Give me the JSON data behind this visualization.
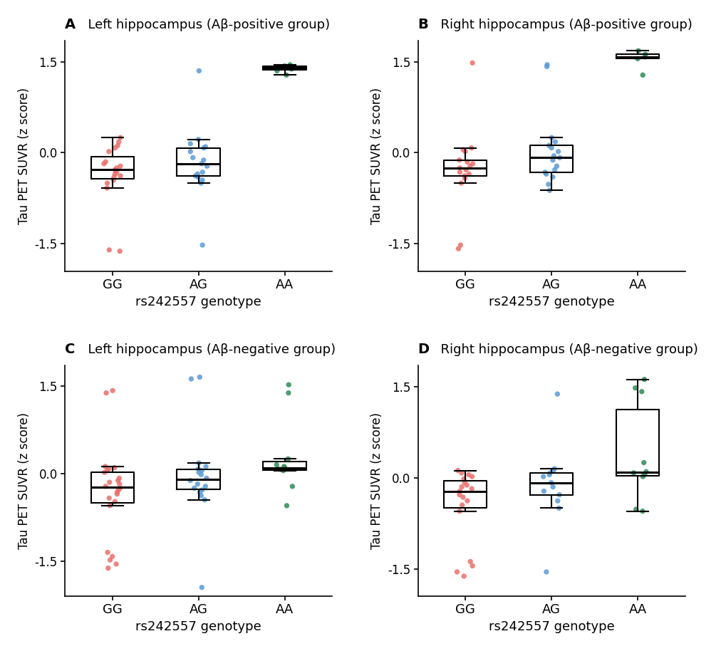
{
  "panels": [
    {
      "label": "A",
      "title": "Left hippocampus (Aβ-positive group)",
      "groups": {
        "GG": [
          -1.62,
          -1.6,
          -0.58,
          -0.5,
          -0.45,
          -0.4,
          -0.38,
          -0.35,
          -0.32,
          -0.28,
          -0.25,
          -0.22,
          -0.18,
          -0.15,
          0.02,
          0.08,
          0.12,
          0.18,
          0.25
        ],
        "AG": [
          -1.52,
          -0.5,
          -0.45,
          -0.4,
          -0.38,
          -0.35,
          -0.32,
          -0.22,
          -0.18,
          -0.12,
          -0.08,
          0.02,
          0.08,
          0.1,
          0.15,
          0.22,
          1.35
        ],
        "AA": [
          1.28,
          1.35,
          1.38,
          1.4,
          1.42,
          1.43,
          1.45
        ]
      },
      "ylim": [
        -1.95,
        1.85
      ],
      "yticks": [
        -1.5,
        0.0,
        1.5
      ]
    },
    {
      "label": "B",
      "title": "Right hippocampus (Aβ-positive group)",
      "groups": {
        "GG": [
          -1.58,
          -1.52,
          -0.5,
          -0.42,
          -0.38,
          -0.35,
          -0.32,
          -0.28,
          -0.25,
          -0.22,
          -0.18,
          -0.15,
          -0.12,
          0.02,
          0.05,
          0.08,
          1.48
        ],
        "AG": [
          -0.62,
          -0.52,
          -0.4,
          -0.35,
          -0.32,
          -0.28,
          -0.22,
          -0.12,
          -0.08,
          -0.05,
          0.02,
          0.08,
          0.12,
          0.18,
          0.25,
          1.42,
          1.45
        ],
        "AA": [
          1.28,
          1.55,
          1.58,
          1.62,
          1.68
        ]
      },
      "ylim": [
        -1.95,
        1.85
      ],
      "yticks": [
        -1.5,
        0.0,
        1.5
      ]
    },
    {
      "label": "C",
      "title": "Left hippocampus (Aβ-negative group)",
      "groups": {
        "GG": [
          -1.62,
          -1.55,
          -1.48,
          -1.42,
          -1.35,
          -0.55,
          -0.48,
          -0.42,
          -0.35,
          -0.32,
          -0.28,
          -0.25,
          -0.22,
          -0.18,
          -0.15,
          -0.12,
          -0.08,
          0.02,
          0.05,
          0.08,
          0.1,
          0.12,
          1.38,
          1.42
        ],
        "AG": [
          -1.95,
          -0.45,
          -0.38,
          -0.32,
          -0.28,
          -0.25,
          -0.22,
          -0.18,
          -0.12,
          -0.08,
          -0.02,
          0.02,
          0.05,
          0.08,
          0.12,
          0.18,
          1.62,
          1.65
        ],
        "AA": [
          -0.55,
          -0.22,
          0.05,
          0.07,
          0.08,
          0.1,
          0.12,
          0.15,
          0.25,
          1.38,
          1.52
        ]
      },
      "ylim": [
        -2.1,
        1.85
      ],
      "yticks": [
        -1.5,
        0.0,
        1.5
      ]
    },
    {
      "label": "D",
      "title": "Right hippocampus (Aβ-negative group)",
      "groups": {
        "GG": [
          -1.62,
          -1.55,
          -1.45,
          -1.38,
          -0.55,
          -0.45,
          -0.38,
          -0.32,
          -0.28,
          -0.22,
          -0.18,
          -0.15,
          -0.12,
          -0.08,
          -0.02,
          0.02,
          0.05,
          0.08,
          0.12
        ],
        "AG": [
          -1.55,
          -0.5,
          -0.38,
          -0.28,
          -0.22,
          -0.15,
          -0.08,
          0.02,
          0.05,
          0.08,
          0.12,
          0.15,
          1.38
        ],
        "AA": [
          -0.55,
          -0.52,
          0.02,
          0.05,
          0.08,
          0.1,
          0.25,
          1.42,
          1.48,
          1.62
        ]
      },
      "ylim": [
        -1.95,
        1.85
      ],
      "yticks": [
        -1.5,
        0.0,
        1.5
      ]
    }
  ],
  "colors": [
    "#E8706A",
    "#5B9BD5",
    "#2E8B57"
  ],
  "genotypes": [
    "GG",
    "AG",
    "AA"
  ],
  "xlabel": "rs242557 genotype",
  "ylabel": "Tau PET SUVR (z score)",
  "background_color": "#FFFFFF",
  "box_width": 0.5,
  "jitter_seed": 12345,
  "jitter_amount": 0.1,
  "point_size": 28,
  "point_alpha": 0.85
}
